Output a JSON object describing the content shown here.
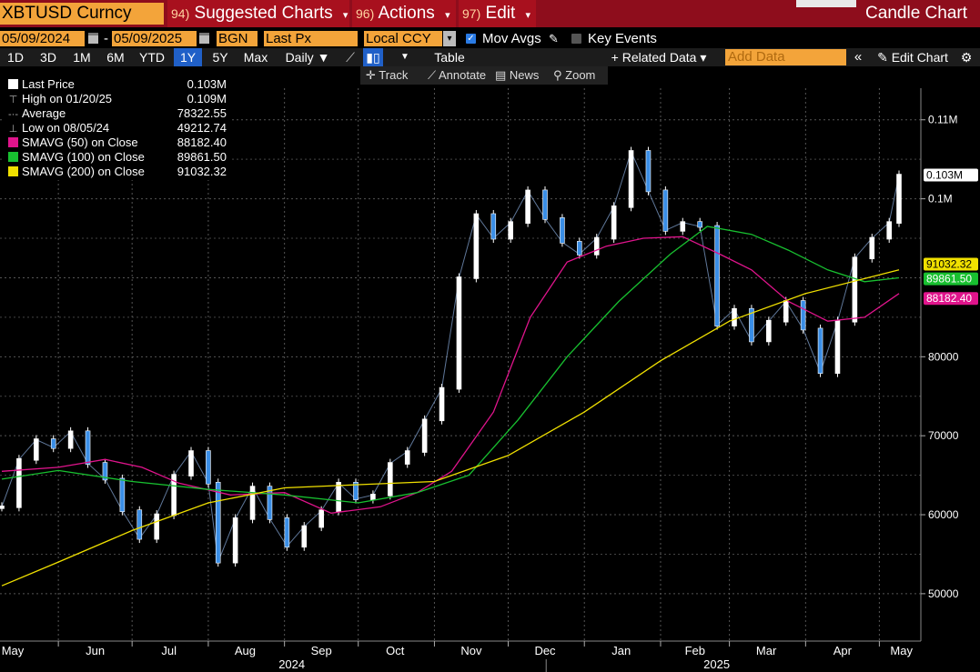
{
  "topbar": {
    "ticker": "XBTUSD Curncy",
    "menus": [
      {
        "num": "94)",
        "label": "Suggested Charts"
      },
      {
        "num": "96)",
        "label": "Actions"
      },
      {
        "num": "97)",
        "label": "Edit"
      }
    ],
    "title": "Candle Chart"
  },
  "settings": {
    "start_date": "05/09/2024",
    "date_sep": "-",
    "end_date": "05/09/2025",
    "source": "BGN",
    "field": "Last Px",
    "currency": "Local CCY",
    "mov_avgs_label": "Mov Avgs",
    "mov_avgs_checked": true,
    "key_events_label": "Key Events",
    "key_events_checked": false
  },
  "toolbar": {
    "periods": [
      "1D",
      "3D",
      "1M",
      "6M",
      "YTD",
      "1Y",
      "5Y",
      "Max"
    ],
    "selected_period": "1Y",
    "frequency": "Daily",
    "table_label": "Table",
    "related_data": "+ Related Data",
    "add_data_placeholder": "Add Data",
    "edit_chart": "Edit Chart"
  },
  "tools": [
    "Track",
    "Annotate",
    "News",
    "Zoom"
  ],
  "legend": [
    {
      "label": "Last Price",
      "value": "0.103M",
      "marker": "swatch",
      "color": "#ffffff"
    },
    {
      "label": "High on 01/20/25",
      "value": "0.109M",
      "marker": "glyph-high",
      "color": "#aaaaaa"
    },
    {
      "label": "Average",
      "value": "78322.55",
      "marker": "glyph-avg",
      "color": "#aaaaaa"
    },
    {
      "label": "Low on 08/05/24",
      "value": "49212.74",
      "marker": "glyph-low",
      "color": "#aaaaaa"
    },
    {
      "label": "SMAVG (50)  on Close",
      "value": "88182.40",
      "marker": "swatch",
      "color": "#e0148c"
    },
    {
      "label": "SMAVG (100)  on Close",
      "value": "89861.50",
      "marker": "swatch",
      "color": "#18c030"
    },
    {
      "label": "SMAVG (200)  on Close",
      "value": "91032.32",
      "marker": "swatch",
      "color": "#f0e000"
    }
  ],
  "chart_data": {
    "type": "line",
    "ylim": [
      44000,
      114000
    ],
    "y_ticks": [
      50000,
      60000,
      70000,
      80000,
      100000,
      110000
    ],
    "y_tick_labels": [
      "50000",
      "60000",
      "70000",
      "80000",
      "0.1M",
      "0.11M"
    ],
    "x_month_labels": [
      "May",
      "Jun",
      "Jul",
      "Aug",
      "Sep",
      "Oct",
      "Nov",
      "Dec",
      "Jan",
      "Feb",
      "Mar",
      "Apr",
      "May"
    ],
    "x_year_labels": [
      "2024",
      "2025"
    ],
    "grid": true,
    "series": [
      {
        "name": "Last Price",
        "color": "#ffffff",
        "style": "candles",
        "x": [
          "2024-05-09",
          "2024-05-16",
          "2024-05-23",
          "2024-05-30",
          "2024-06-06",
          "2024-06-13",
          "2024-06-20",
          "2024-06-27",
          "2024-07-04",
          "2024-07-11",
          "2024-07-18",
          "2024-07-25",
          "2024-08-01",
          "2024-08-05",
          "2024-08-12",
          "2024-08-19",
          "2024-08-26",
          "2024-09-02",
          "2024-09-09",
          "2024-09-16",
          "2024-09-23",
          "2024-09-30",
          "2024-10-07",
          "2024-10-14",
          "2024-10-21",
          "2024-10-28",
          "2024-11-04",
          "2024-11-11",
          "2024-11-18",
          "2024-11-25",
          "2024-12-02",
          "2024-12-09",
          "2024-12-16",
          "2024-12-23",
          "2024-12-30",
          "2025-01-06",
          "2025-01-13",
          "2025-01-20",
          "2025-01-27",
          "2025-02-03",
          "2025-02-10",
          "2025-02-17",
          "2025-02-24",
          "2025-03-03",
          "2025-03-10",
          "2025-03-17",
          "2025-03-24",
          "2025-03-31",
          "2025-04-07",
          "2025-04-14",
          "2025-04-21",
          "2025-04-28",
          "2025-05-05",
          "2025-05-09"
        ],
        "values": [
          61000,
          67000,
          69500,
          68500,
          70500,
          66500,
          64500,
          60500,
          57000,
          60000,
          65000,
          68000,
          64000,
          54000,
          59500,
          63500,
          59500,
          56000,
          58500,
          60500,
          64000,
          62000,
          62500,
          66500,
          68000,
          72000,
          76000,
          90000,
          98000,
          95000,
          97000,
          101000,
          97500,
          94500,
          93000,
          95000,
          99000,
          106000,
          101000,
          96000,
          97000,
          96500,
          84000,
          86000,
          82000,
          84500,
          87000,
          83500,
          78000,
          84500,
          92500,
          95000,
          97000,
          103000
        ]
      },
      {
        "name": "SMAVG (50)  on Close",
        "color": "#e0148c",
        "x": [
          "2024-05-09",
          "2024-06-01",
          "2024-06-20",
          "2024-07-05",
          "2024-07-20",
          "2024-08-10",
          "2024-09-01",
          "2024-09-20",
          "2024-10-10",
          "2024-10-25",
          "2024-11-08",
          "2024-11-25",
          "2024-12-10",
          "2024-12-25",
          "2025-01-10",
          "2025-01-25",
          "2025-02-10",
          "2025-02-25",
          "2025-03-10",
          "2025-03-25",
          "2025-04-10",
          "2025-04-25",
          "2025-05-09"
        ],
        "values": [
          65500,
          66000,
          67000,
          66000,
          64000,
          62500,
          62800,
          60200,
          61000,
          62800,
          65500,
          73000,
          85000,
          92000,
          94000,
          95000,
          95200,
          93000,
          91000,
          87000,
          84500,
          85000,
          88000
        ]
      },
      {
        "name": "SMAVG (100)  on Close",
        "color": "#18c030",
        "x": [
          "2024-05-09",
          "2024-06-01",
          "2024-07-01",
          "2024-08-01",
          "2024-09-01",
          "2024-10-01",
          "2024-10-25",
          "2024-11-15",
          "2024-12-05",
          "2024-12-25",
          "2025-01-15",
          "2025-02-05",
          "2025-02-20",
          "2025-03-10",
          "2025-03-25",
          "2025-04-10",
          "2025-04-25",
          "2025-05-09"
        ],
        "values": [
          64500,
          65600,
          64200,
          63200,
          62500,
          61500,
          62800,
          65000,
          72000,
          80000,
          87000,
          93000,
          96500,
          95500,
          93500,
          91000,
          89500,
          90000
        ]
      },
      {
        "name": "SMAVG (200)  on Close",
        "color": "#f0e000",
        "x": [
          "2024-05-09",
          "2024-06-01",
          "2024-07-01",
          "2024-08-01",
          "2024-09-01",
          "2024-10-01",
          "2024-11-01",
          "2024-12-01",
          "2025-01-01",
          "2025-02-01",
          "2025-03-01",
          "2025-04-01",
          "2025-05-09"
        ],
        "values": [
          51000,
          54000,
          58000,
          61500,
          63400,
          63800,
          64200,
          67500,
          73000,
          79500,
          84500,
          88000,
          91000
        ]
      }
    ],
    "right_labels": [
      {
        "text": "0.103M",
        "value": 103000,
        "bg": "#ffffff",
        "fg": "#000000"
      },
      {
        "text": "91032.32",
        "value": 91032.32,
        "bg": "#f0e000",
        "fg": "#000000"
      },
      {
        "text": "89861.50",
        "value": 89861.5,
        "bg": "#18c030",
        "fg": "#ffffff"
      },
      {
        "text": "88182.40",
        "value": 88182.4,
        "bg": "#e0148c",
        "fg": "#ffffff"
      }
    ]
  }
}
